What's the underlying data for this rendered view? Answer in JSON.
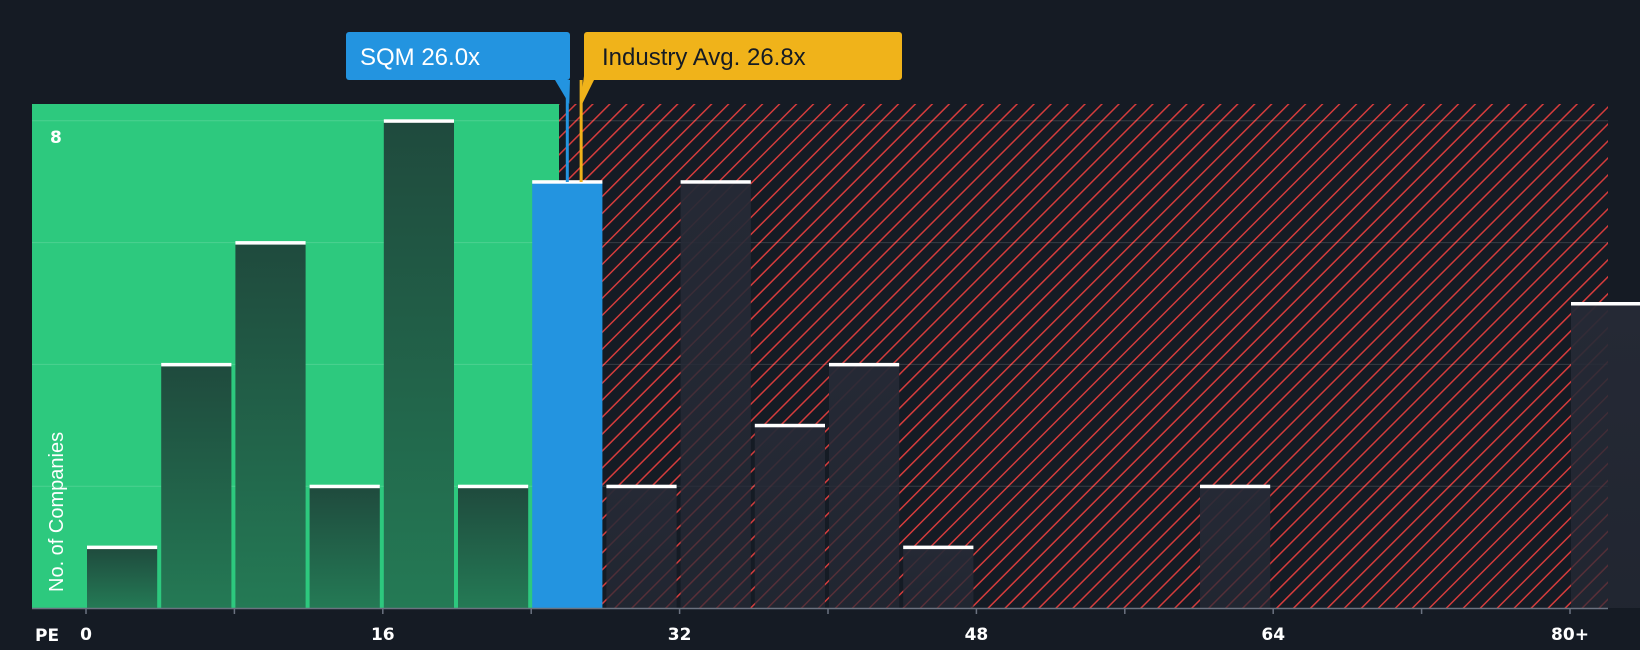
{
  "colors": {
    "background": "#151b24",
    "fair_zone": "#2dc97e",
    "fair_bar": "#1f4a3d",
    "over_zone_stripe": "#d43c3c",
    "over_bar": "#252a36",
    "subject_bar": "#2394e0",
    "subject_label_bg": "#2394e0",
    "industry_label_bg": "#f0b31a",
    "industry_line": "#f0b31a",
    "bar_cap": "#ffffff"
  },
  "chart_data": {
    "type": "bar",
    "xlabel": "PE",
    "ylabel": "No. of Companies",
    "x_ticks": [
      "0",
      "16",
      "32",
      "48",
      "64",
      "80+"
    ],
    "y_ticks": [
      "8"
    ],
    "xlim": [
      0,
      82
    ],
    "ylim": [
      0,
      8.3
    ],
    "bin_width": 4,
    "bins": [
      {
        "x0": 0,
        "count": 1
      },
      {
        "x0": 4,
        "count": 4
      },
      {
        "x0": 8,
        "count": 6
      },
      {
        "x0": 12,
        "count": 2
      },
      {
        "x0": 16,
        "count": 8
      },
      {
        "x0": 20,
        "count": 2
      },
      {
        "x0": 24,
        "count": 7,
        "highlight": true
      },
      {
        "x0": 28,
        "count": 2
      },
      {
        "x0": 32,
        "count": 7
      },
      {
        "x0": 36,
        "count": 3
      },
      {
        "x0": 40,
        "count": 4
      },
      {
        "x0": 44,
        "count": 1
      },
      {
        "x0": 60,
        "count": 2
      },
      {
        "x0": 80,
        "count": 5
      }
    ],
    "fair_zone_max": 25.5,
    "subject": {
      "label": "SQM 26.0x",
      "value": 26.0
    },
    "industry": {
      "label": "Industry Avg. 26.8x",
      "value": 26.8
    },
    "grid": true
  }
}
